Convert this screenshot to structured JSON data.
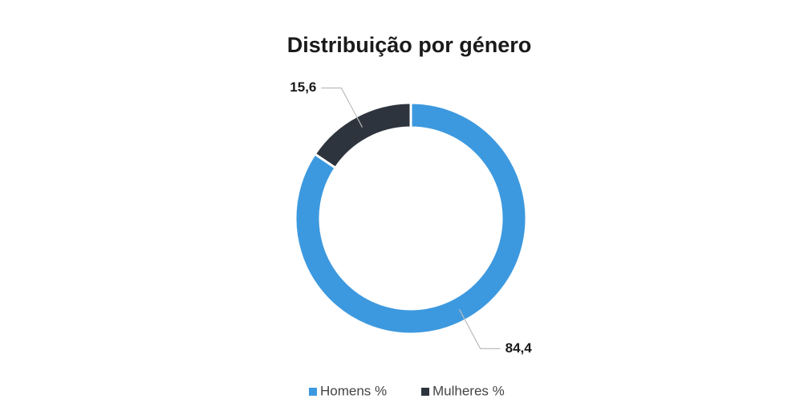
{
  "chart_data": {
    "type": "donut",
    "title": "Distribuição por género",
    "series": [
      {
        "name": "Homens %",
        "color": "#3d99df",
        "values": [
          84.4
        ],
        "value_labels": [
          "84,4"
        ]
      },
      {
        "name": "Mulheres %",
        "color": "#2e343d",
        "values": [
          15.6
        ],
        "value_labels": [
          "15,6"
        ]
      }
    ]
  }
}
